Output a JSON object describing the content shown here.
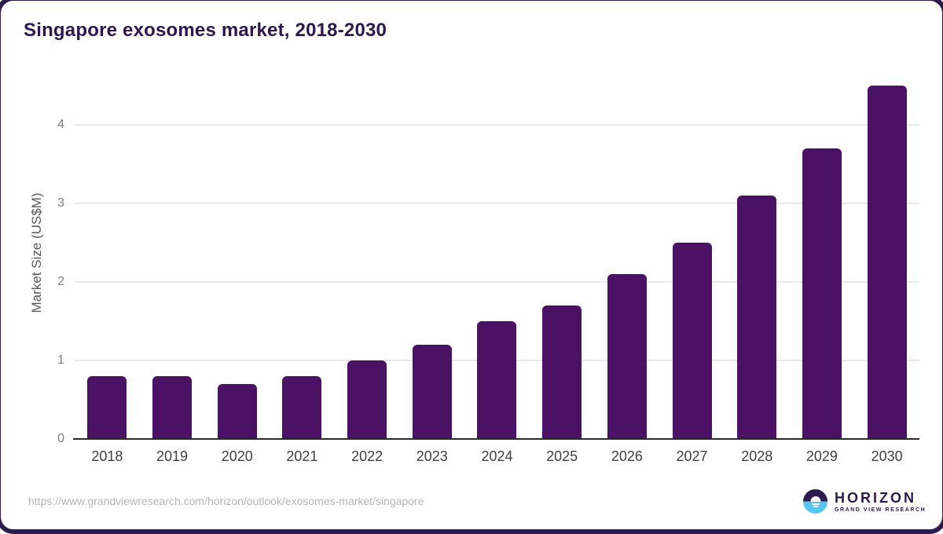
{
  "chart_data": {
    "type": "bar",
    "title": "Singapore exosomes market, 2018-2030",
    "categories": [
      "2018",
      "2019",
      "2020",
      "2021",
      "2022",
      "2023",
      "2024",
      "2025",
      "2026",
      "2027",
      "2028",
      "2029",
      "2030"
    ],
    "values": [
      0.8,
      0.8,
      0.7,
      0.8,
      1.0,
      1.2,
      1.5,
      1.7,
      2.1,
      2.5,
      3.1,
      3.7,
      4.5
    ],
    "xlabel": "",
    "ylabel": "Market Size (US$M)",
    "ylim": [
      0,
      4.5
    ],
    "yticks": [
      0,
      1,
      2,
      3,
      4
    ],
    "grid": true,
    "legend": false,
    "bar_color": "#4a1164"
  },
  "footer": {
    "source_url": "https://www.grandviewresearch.com/horizon/outlook/exosomes-market/singapore"
  },
  "logo": {
    "brand": "HORIZON",
    "sub_brand": "GRAND VIEW RESEARCH",
    "icon": "horizon-sunset-circle-icon"
  },
  "colors": {
    "title_text": "#2e164e",
    "bar": "#4a1164",
    "axis_line": "#2b2b2b",
    "gridline": "#e9e9e9",
    "ytick_text": "#7d7d7d",
    "xlabel_text": "#404040",
    "url_text": "#b5b5b5",
    "logo_dark": "#2d1b4e",
    "logo_blue": "#58c4f1"
  }
}
